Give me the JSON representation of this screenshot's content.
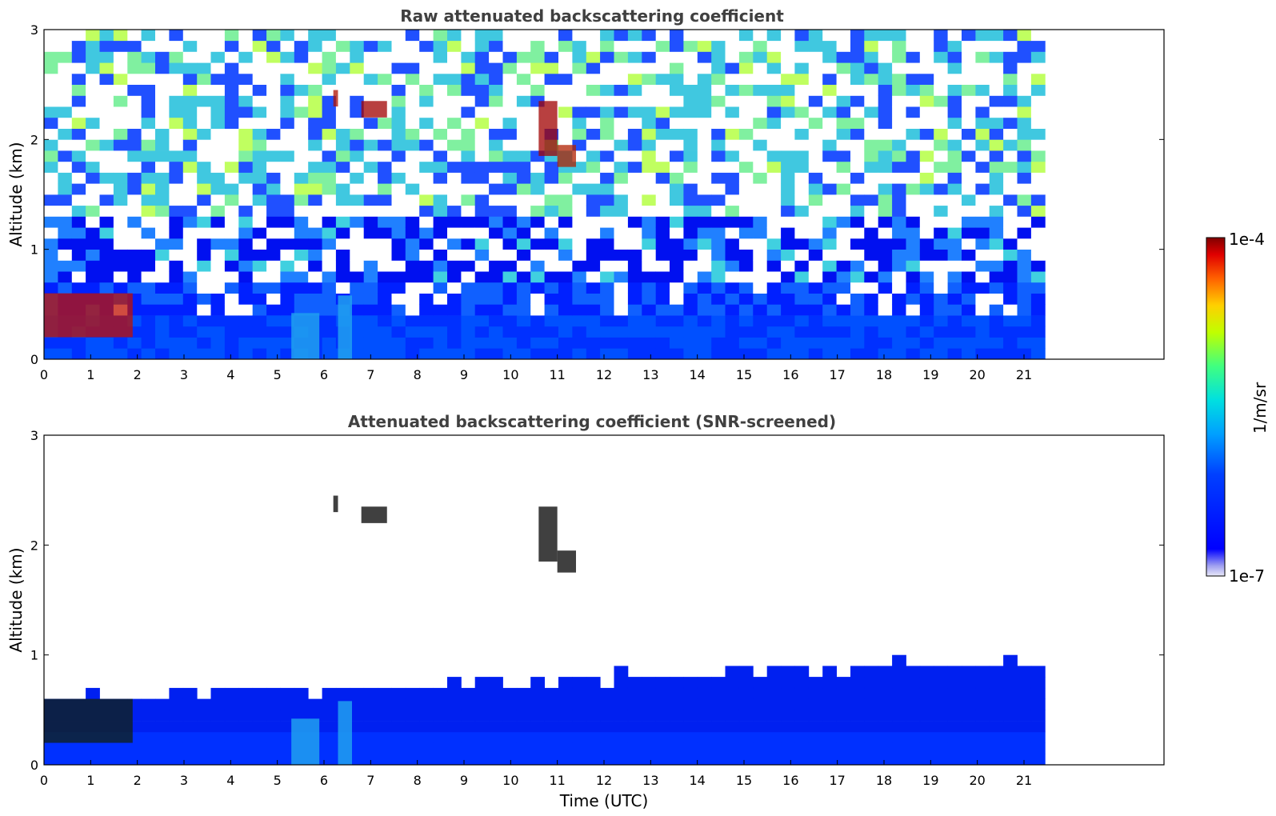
{
  "chart_data": [
    {
      "type": "heatmap",
      "title": "Raw attenuated backscattering coefficient",
      "xlabel": "",
      "ylabel": "Altitude (km)",
      "xlim": [
        0,
        24
      ],
      "ylim": [
        0,
        3
      ],
      "xticks": [
        "0",
        "1",
        "2",
        "3",
        "4",
        "5",
        "6",
        "7",
        "8",
        "9",
        "10",
        "11",
        "12",
        "13",
        "14",
        "15",
        "16",
        "17",
        "18",
        "19",
        "20",
        "21"
      ],
      "yticks": [
        "0",
        "1",
        "2",
        "3"
      ],
      "data_end_time": 21.45,
      "features": [
        {
          "kind": "aerosol_layer",
          "x0": 0.0,
          "x1": 1.9,
          "y0": 0.2,
          "y1": 0.6
        },
        {
          "kind": "cloud",
          "x": 6.25,
          "y": 2.38
        },
        {
          "kind": "cloud",
          "x0": 6.8,
          "x1": 7.35,
          "y": 2.27
        },
        {
          "kind": "cloud",
          "x0": 10.6,
          "x1": 11.4,
          "y0": 1.8,
          "y1": 2.4
        }
      ]
    },
    {
      "type": "heatmap",
      "title": "Attenuated backscattering coefficient (SNR-screened)",
      "xlabel": "Time (UTC)",
      "ylabel": "Altitude (km)",
      "xlim": [
        0,
        24
      ],
      "ylim": [
        0,
        3
      ],
      "xticks": [
        "0",
        "1",
        "2",
        "3",
        "4",
        "5",
        "6",
        "7",
        "8",
        "9",
        "10",
        "11",
        "12",
        "13",
        "14",
        "15",
        "16",
        "17",
        "18",
        "19",
        "20",
        "21"
      ],
      "yticks": [
        "0",
        "1",
        "2",
        "3"
      ],
      "data_end_time": 21.45
    }
  ],
  "colorbar": {
    "max_label": "1e-4",
    "min_label": "1e-7",
    "label": "1/m/sr",
    "scale": "log",
    "colors": [
      "#e8e8f8",
      "#a0a0f0",
      "#0000ff",
      "#0040ff",
      "#00a0ff",
      "#00e0e0",
      "#40ff80",
      "#c0ff00",
      "#ffd000",
      "#ff6000",
      "#e00000",
      "#800000"
    ]
  }
}
